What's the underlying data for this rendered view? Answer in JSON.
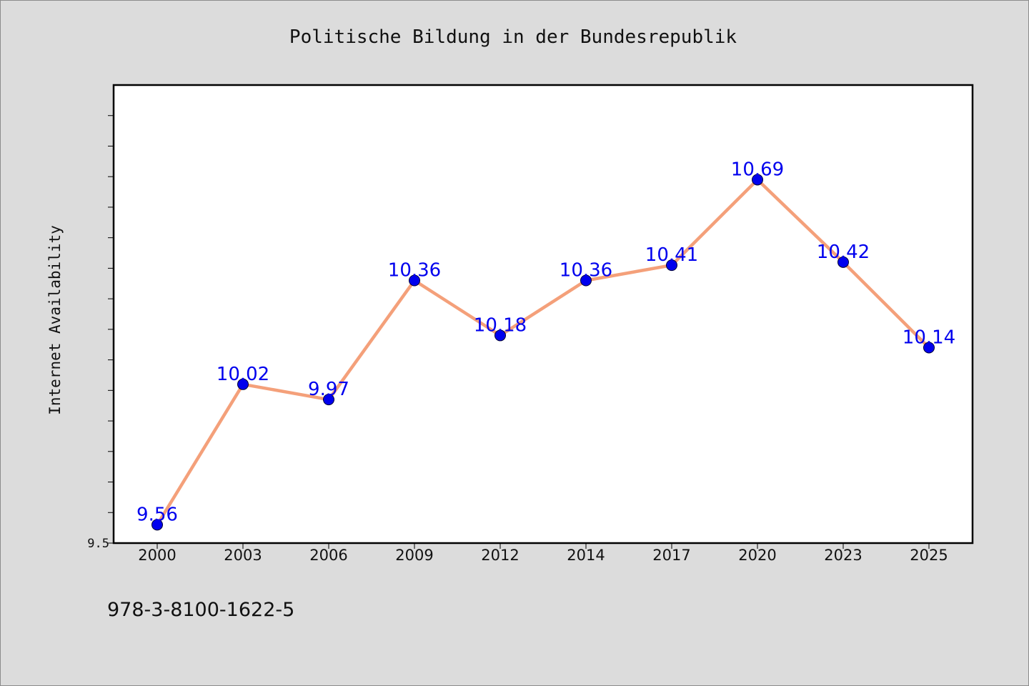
{
  "chart_data": {
    "type": "line",
    "title": "Politische Bildung in der Bundesrepublik",
    "xlabel": "",
    "ylabel": "Internet Availability",
    "categories": [
      "2000",
      "2003",
      "2006",
      "2009",
      "2012",
      "2014",
      "2017",
      "2020",
      "2023",
      "2025"
    ],
    "series": [
      {
        "values": [
          9.56,
          10.02,
          9.97,
          10.36,
          10.18,
          10.36,
          10.41,
          10.69,
          10.42,
          10.14
        ]
      }
    ],
    "data_labels": [
      "9.56",
      "10.02",
      "9.97",
      "10.36",
      "10.18",
      "10.36",
      "10.41",
      "10.69",
      "10.42",
      "10.14"
    ],
    "ylim": [
      9.5,
      11.0
    ],
    "y_tick_labels": [
      "9.5"
    ],
    "grid": false,
    "line_color": "#f4a07a",
    "marker_color": "#0000ee",
    "label_color": "#0000ee"
  },
  "footer": {
    "code": "978-3-8100-1622-5"
  }
}
